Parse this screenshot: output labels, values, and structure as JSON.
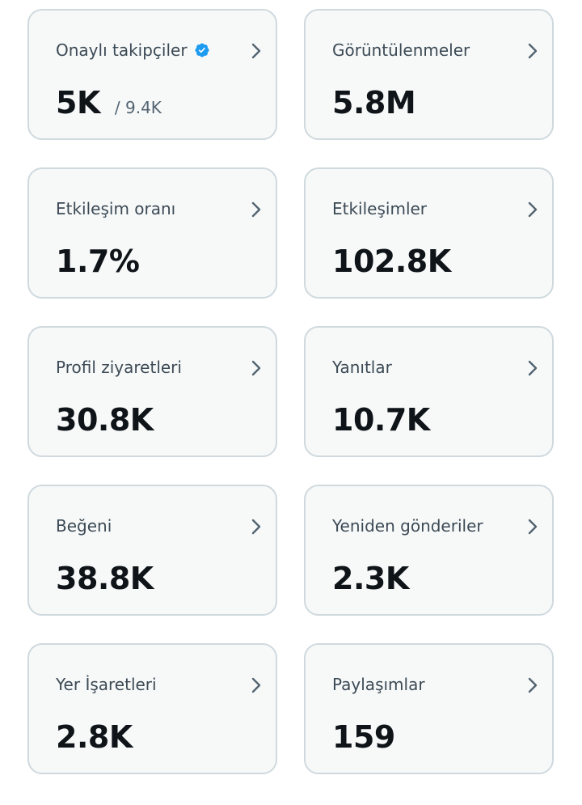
{
  "stats": [
    {
      "label": "Onaylı takipçiler",
      "value": "5K",
      "sub": "/ 9.4K",
      "verified": true
    },
    {
      "label": "Görüntülenmeler",
      "value": "5.8M"
    },
    {
      "label": "Etkileşim oranı",
      "value": "1.7%"
    },
    {
      "label": "Etkileşimler",
      "value": "102.8K"
    },
    {
      "label": "Profil ziyaretleri",
      "value": "30.8K"
    },
    {
      "label": "Yanıtlar",
      "value": "10.7K"
    },
    {
      "label": "Beğeni",
      "value": "38.8K"
    },
    {
      "label": "Yeniden gönderiler",
      "value": "2.3K"
    },
    {
      "label": "Yer İşaretleri",
      "value": "2.8K"
    },
    {
      "label": "Paylaşımlar",
      "value": "159"
    }
  ],
  "icons": {
    "verified": "verified-badge-icon",
    "chevron": "chevron-right-icon"
  },
  "colors": {
    "card_background": "#f7f9f9",
    "card_border": "#cfd9de",
    "label": "#536471",
    "value": "#0f1419",
    "verified_badge": "#1d9bf0",
    "chevron": "#536471"
  }
}
